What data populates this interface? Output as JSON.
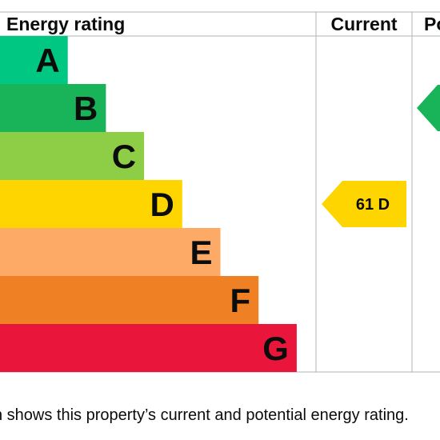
{
  "chart_data": {
    "type": "bar",
    "title": "Energy rating",
    "columns": {
      "current": "Current",
      "potential": "Po"
    },
    "bands": [
      {
        "letter": "A",
        "value": 1,
        "color": "#00c781"
      },
      {
        "letter": "B",
        "value": 2,
        "color": "#19b459"
      },
      {
        "letter": "C",
        "value": 3,
        "color": "#8dce46"
      },
      {
        "letter": "D",
        "value": 4,
        "color": "#ffd500"
      },
      {
        "letter": "E",
        "value": 5,
        "color": "#fcaa65"
      },
      {
        "letter": "F",
        "value": 6,
        "color": "#ef8023"
      },
      {
        "letter": "G",
        "value": 7,
        "color": "#e9153b"
      }
    ],
    "current_rating": {
      "score": 61,
      "band": "D",
      "label": "61 D",
      "color": "#ffd500"
    },
    "potential_rating": {
      "band": "B",
      "color": "#19b459"
    },
    "grid_color": "#b1b4b6"
  },
  "caption": "n shows this property’s current and potential energy rating."
}
